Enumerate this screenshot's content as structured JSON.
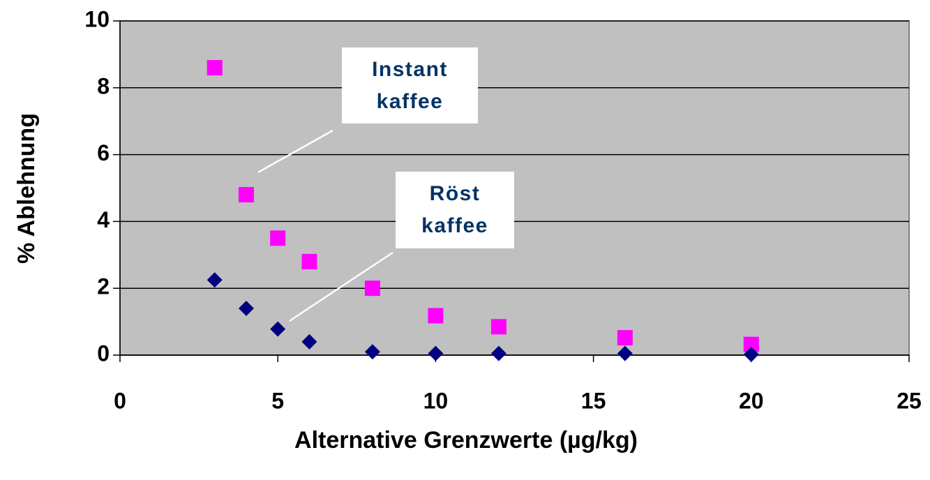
{
  "chart_data": {
    "type": "scatter",
    "xlabel": "Alternative Grenzwerte (µg/kg)",
    "ylabel": "% Ablehnung",
    "x": [
      3,
      4,
      5,
      6,
      8,
      10,
      12,
      16,
      20
    ],
    "series": [
      {
        "color": "#ff00ff",
        "marker": "square",
        "values": [
          8.6,
          4.8,
          3.5,
          2.8,
          2.0,
          1.18,
          0.85,
          0.52,
          0.32
        ]
      },
      {
        "color": "#000080",
        "marker": "diamond",
        "values": [
          2.25,
          1.4,
          0.78,
          0.4,
          0.1,
          0.05,
          0.05,
          0.05,
          0.02
        ]
      }
    ],
    "annotations": [
      {
        "lines": [
          "Instant",
          "kaffee"
        ]
      },
      {
        "lines": [
          "Röst",
          "kaffee"
        ]
      }
    ],
    "xlim": [
      0,
      25
    ],
    "xticks": [
      0,
      5,
      10,
      15,
      20,
      25
    ],
    "ylim": [
      0,
      10
    ],
    "yticks": [
      0,
      2,
      4,
      6,
      8,
      10
    ],
    "grid": true
  }
}
